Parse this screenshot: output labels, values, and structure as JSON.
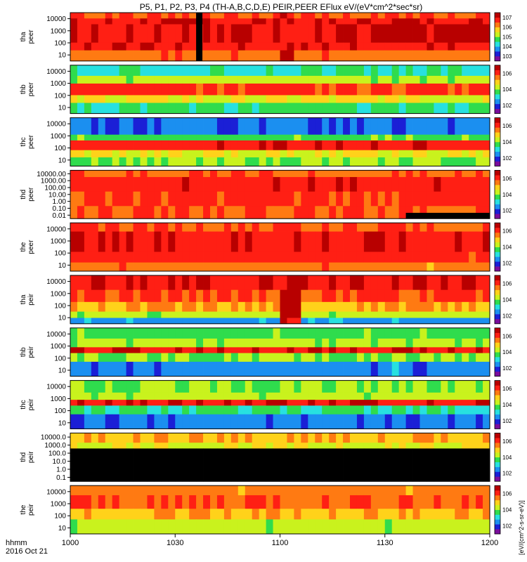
{
  "chart_data": {
    "type": "heatmap",
    "title": "P5, P1, P2, P3, P4 (TH-A,B,C,D,E) PEIR,PEER EFlux eV/(eV*cm^2*sec*sr)",
    "x_axis": {
      "label_line1": "hhmm",
      "label_line2": "2016 Oct 21",
      "range": [
        "10:00",
        "12:00"
      ],
      "tick_labels": [
        "1000",
        "1030",
        "1100",
        "1130",
        "1200"
      ]
    },
    "colorbar_label": "[eV/(cm^2-s-sr-eV)]",
    "colormap": [
      "#7a0d9c",
      "#1b1fd6",
      "#1b8ff0",
      "#27e0e0",
      "#2fdc4d",
      "#c9f21d",
      "#ffd21a",
      "#ff7a12",
      "#ff1f14",
      "#b80000"
    ],
    "panels": [
      {
        "label1": "tha",
        "label2": "peer",
        "ylim": [
          10,
          20000
        ],
        "yticks": [
          "10",
          "100",
          "1000",
          "10000"
        ],
        "cbar_ticks": [
          "10^3",
          "10^4",
          "10^5",
          "10^6",
          "10^7"
        ],
        "bands": [
          {
            "frac": 0.12,
            "level": 0.84
          },
          {
            "frac": 0.12,
            "level": 0.93
          },
          {
            "frac": 0.38,
            "level": 0.95
          },
          {
            "frac": 0.16,
            "level": 0.92
          },
          {
            "frac": 0.22,
            "level": 0.78
          }
        ],
        "gaps": [
          {
            "x": [
              10.6,
              10.63
            ],
            "level": 0.0
          }
        ],
        "enhance": [
          {
            "x": [
              11.0,
              11.08
            ],
            "level": 0.97
          }
        ]
      },
      {
        "label1": "thb",
        "label2": "peer",
        "ylim": [
          10,
          20000
        ],
        "yticks": [
          "10",
          "100",
          "1000",
          "10000"
        ],
        "cbar_ticks": [
          "10^2",
          "10^4",
          "10^6"
        ],
        "bands": [
          {
            "frac": 0.22,
            "level": 0.38
          },
          {
            "frac": 0.16,
            "level": 0.55
          },
          {
            "frac": 0.24,
            "level": 0.88
          },
          {
            "frac": 0.16,
            "level": 0.62
          },
          {
            "frac": 0.22,
            "level": 0.42
          }
        ],
        "gaps": [],
        "enhance": []
      },
      {
        "label1": "thc",
        "label2": "peer",
        "ylim": [
          10,
          20000
        ],
        "yticks": [
          "10",
          "100",
          "1000",
          "10000"
        ],
        "cbar_ticks": [
          "10^2",
          "10^4",
          "10^6"
        ],
        "bands": [
          {
            "frac": 0.35,
            "level": 0.2
          },
          {
            "frac": 0.12,
            "level": 0.45
          },
          {
            "frac": 0.2,
            "level": 0.9
          },
          {
            "frac": 0.15,
            "level": 0.6
          },
          {
            "frac": 0.18,
            "level": 0.5
          }
        ],
        "gaps": [],
        "enhance": []
      },
      {
        "label1": "thd",
        "label2": "peer",
        "ylim": [
          0.01,
          20000
        ],
        "yticks": [
          "0.01",
          "0.10",
          "1.00",
          "10.00",
          "100.00",
          "1000.00",
          "10000.00"
        ],
        "cbar_ticks": [
          "10^2",
          "10^4",
          "10^6"
        ],
        "bands": [
          {
            "frac": 0.14,
            "level": 0.8
          },
          {
            "frac": 0.3,
            "level": 0.9
          },
          {
            "frac": 0.3,
            "level": 0.87
          },
          {
            "frac": 0.26,
            "level": 0.85
          }
        ],
        "gaps": [
          {
            "x": [
              11.6,
              12.0
            ],
            "level": 0.0,
            "bottom_frac": 0.12
          }
        ],
        "enhance": []
      },
      {
        "label1": "the",
        "label2": "peer",
        "ylim": [
          5,
          20000
        ],
        "yticks": [
          "10",
          "100",
          "1000",
          "10000"
        ],
        "cbar_ticks": [
          "10^2",
          "10^4",
          "10^6"
        ],
        "bands": [
          {
            "frac": 0.18,
            "level": 0.84
          },
          {
            "frac": 0.42,
            "level": 0.93
          },
          {
            "frac": 0.22,
            "level": 0.88
          },
          {
            "frac": 0.18,
            "level": 0.78
          }
        ],
        "gaps": [],
        "enhance": []
      },
      {
        "label1": "tha",
        "label2": "peir",
        "ylim": [
          5,
          20000
        ],
        "yticks": [
          "10",
          "100",
          "1000",
          "10000"
        ],
        "cbar_ticks": [
          "10^2",
          "10^4",
          "10^6"
        ],
        "bands": [
          {
            "frac": 0.3,
            "level": 0.92
          },
          {
            "frac": 0.25,
            "level": 0.85
          },
          {
            "frac": 0.2,
            "level": 0.72
          },
          {
            "frac": 0.13,
            "level": 0.55
          },
          {
            "frac": 0.12,
            "level": 0.25
          }
        ],
        "gaps": [],
        "enhance": [
          {
            "x": [
              11.0,
              11.1
            ],
            "level": 0.95
          }
        ]
      },
      {
        "label1": "thb",
        "label2": "peir",
        "ylim": [
          5,
          20000
        ],
        "yticks": [
          "10",
          "100",
          "1000",
          "10000"
        ],
        "cbar_ticks": [
          "10^2",
          "10^4",
          "10^6"
        ],
        "bands": [
          {
            "frac": 0.22,
            "level": 0.45
          },
          {
            "frac": 0.18,
            "level": 0.55
          },
          {
            "frac": 0.12,
            "level": 0.92
          },
          {
            "frac": 0.18,
            "level": 0.5
          },
          {
            "frac": 0.3,
            "level": 0.22
          }
        ],
        "gaps": [],
        "enhance": []
      },
      {
        "label1": "thc",
        "label2": "peir",
        "ylim": [
          5,
          20000
        ],
        "yticks": [
          "10",
          "100",
          "1000",
          "10000"
        ],
        "cbar_ticks": [
          "10^2",
          "10^4",
          "10^6"
        ],
        "bands": [
          {
            "frac": 0.25,
            "level": 0.5
          },
          {
            "frac": 0.15,
            "level": 0.55
          },
          {
            "frac": 0.12,
            "level": 0.93
          },
          {
            "frac": 0.18,
            "level": 0.4
          },
          {
            "frac": 0.3,
            "level": 0.2
          }
        ],
        "gaps": [],
        "enhance": []
      },
      {
        "label1": "thd",
        "label2": "peir",
        "ylim": [
          0.1,
          20000
        ],
        "yticks": [
          "0.1",
          "1.0",
          "10.0",
          "100.0",
          "1000.0",
          "10000.0"
        ],
        "cbar_ticks": [
          "10^2",
          "10^4",
          "10^6"
        ],
        "bands": [
          {
            "frac": 0.2,
            "level": 0.7
          },
          {
            "frac": 0.12,
            "level": 0.6
          },
          {
            "frac": 0.68,
            "level": 0.0
          }
        ],
        "gaps": [],
        "enhance": []
      },
      {
        "label1": "the",
        "label2": "peir",
        "ylim": [
          5,
          20000
        ],
        "yticks": [
          "10",
          "100",
          "1000",
          "10000"
        ],
        "cbar_ticks": [
          "10^2",
          "10^4",
          "10^6"
        ],
        "bands": [
          {
            "frac": 0.2,
            "level": 0.78
          },
          {
            "frac": 0.28,
            "level": 0.82
          },
          {
            "frac": 0.22,
            "level": 0.7
          },
          {
            "frac": 0.3,
            "level": 0.55
          }
        ],
        "gaps": [],
        "enhance": []
      }
    ]
  }
}
